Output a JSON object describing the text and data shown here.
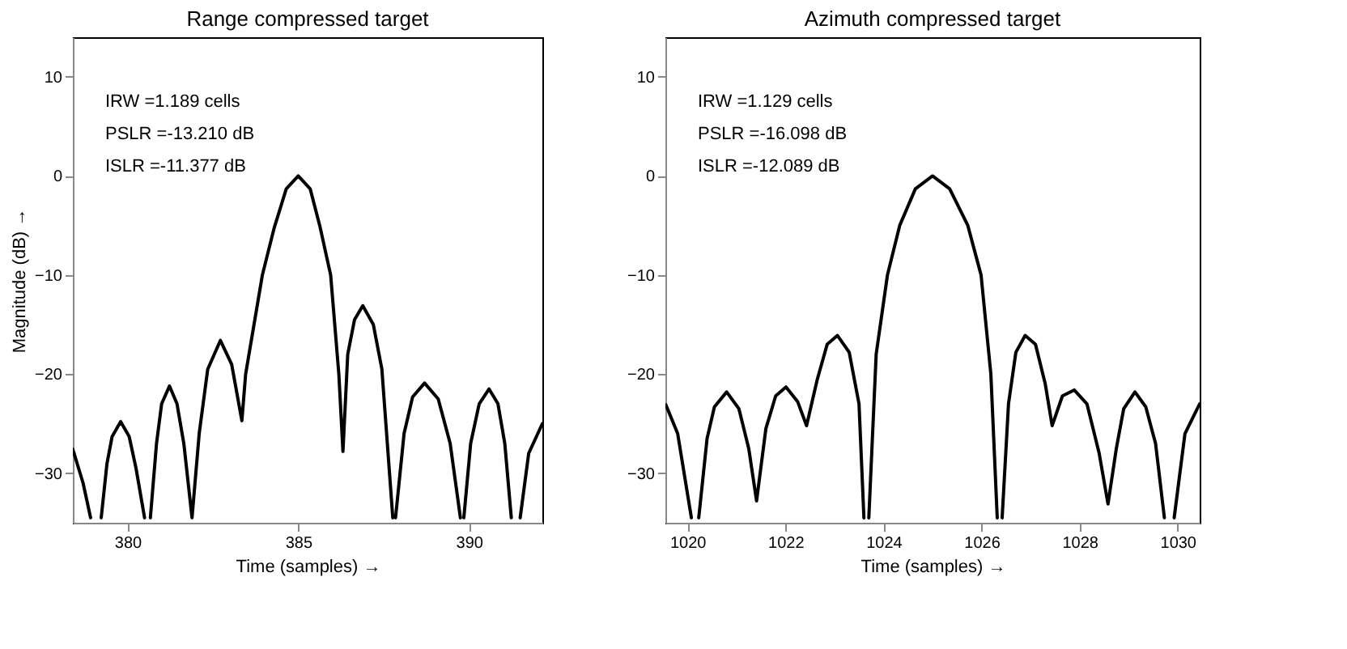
{
  "chart_data": [
    {
      "type": "line",
      "title": "Range compressed target",
      "xlabel": "Time (samples) →",
      "ylabel": "Magnitude (dB) →",
      "xlim": [
        378.4,
        392.15
      ],
      "ylim": [
        -35,
        14
      ],
      "xticks": [
        380,
        385,
        390
      ],
      "yticks": [
        -30,
        -20,
        -10,
        0,
        10
      ],
      "grid": false,
      "annotations": [
        "IRW  =1.189 cells",
        "PSLR  =-13.210 dB",
        "ISLR  =-11.377 dB"
      ],
      "series": [
        {
          "color": "#000000",
          "x": [
            378.4,
            378.7,
            378.92,
            379.07,
            379.23,
            379.4,
            379.55,
            379.8,
            380.05,
            380.25,
            380.5,
            380.58,
            380.67,
            380.85,
            381.0,
            381.23,
            381.45,
            381.65,
            381.89,
            382.1,
            382.35,
            382.72,
            383.05,
            383.35,
            383.46,
            383.95,
            384.3,
            384.65,
            385,
            385.35,
            385.63,
            385.95,
            386.19,
            386.31,
            386.45,
            386.65,
            386.89,
            387.2,
            387.45,
            387.77,
            387.81,
            387.85,
            388.1,
            388.35,
            388.7,
            389.1,
            389.45,
            389.75,
            389.8,
            389.85,
            390.05,
            390.3,
            390.59,
            390.85,
            391.05,
            391.24,
            391.37,
            391.5,
            391.75,
            392.15
          ],
          "values": [
            -27.6,
            -31,
            -34.5,
            null,
            -34.5,
            -29,
            -26.3,
            -24.8,
            -26.3,
            -29.5,
            -34.5,
            null,
            -34.5,
            -27,
            -23,
            -21.2,
            -23,
            -27,
            -34.5,
            -26,
            -19.5,
            -16.6,
            -19,
            -24.7,
            -20,
            -10,
            -5.2,
            -1.3,
            0,
            -1.3,
            -5,
            -10,
            -20,
            -27.8,
            -18,
            -14.5,
            -13.1,
            -15,
            -19.5,
            -34.5,
            null,
            -34.5,
            -26,
            -22.3,
            -20.9,
            -22.5,
            -27,
            -34.5,
            null,
            -34.5,
            -27,
            -23,
            -21.5,
            -23,
            -27,
            -34.5,
            null,
            -34.5,
            -28,
            -25.0
          ]
        }
      ]
    },
    {
      "type": "line",
      "title": "Azimuth compressed target",
      "xlabel": "Time (samples) →",
      "xlim": [
        1019.55,
        1030.45
      ],
      "ylim": [
        -35,
        14
      ],
      "xticks": [
        1020,
        1022,
        1024,
        1026,
        1028,
        1030
      ],
      "yticks": [
        -30,
        -20,
        -10,
        0,
        10
      ],
      "grid": false,
      "annotations": [
        "IRW  =1.129 cells",
        "PSLR  =-16.098 dB",
        "ISLR  =-12.089 dB"
      ],
      "series": [
        {
          "color": "#000000",
          "x": [
            1019.56,
            1019.8,
            1020.08,
            1020.15,
            1020.23,
            1020.4,
            1020.55,
            1020.8,
            1021.05,
            1021.25,
            1021.41,
            1021.6,
            1021.8,
            1022.01,
            1022.25,
            1022.43,
            1022.65,
            1022.85,
            1023.06,
            1023.3,
            1023.5,
            1023.6,
            1023.65,
            1023.7,
            1023.85,
            1024.08,
            1024.33,
            1024.65,
            1025,
            1025.35,
            1025.72,
            1025.99,
            1026.19,
            1026.32,
            1026.37,
            1026.42,
            1026.55,
            1026.7,
            1026.89,
            1027.1,
            1027.3,
            1027.44,
            1027.65,
            1027.89,
            1028.15,
            1028.4,
            1028.58,
            1028.75,
            1028.9,
            1029.13,
            1029.35,
            1029.55,
            1029.73,
            1029.83,
            1029.93,
            1030.15,
            1030.45
          ],
          "values": [
            -23.1,
            -26,
            -34.5,
            null,
            -34.5,
            -26.5,
            -23.3,
            -21.8,
            -23.5,
            -27.5,
            -32.8,
            -25.5,
            -22.2,
            -21.3,
            -22.8,
            -25.2,
            -20.5,
            -17,
            -16.1,
            -17.8,
            -23,
            -34.5,
            null,
            -34.5,
            -18,
            -10,
            -5,
            -1.3,
            0,
            -1.3,
            -5,
            -10,
            -20,
            -34.5,
            null,
            -34.5,
            -23,
            -17.8,
            -16.1,
            -17,
            -21,
            -25.2,
            -22.2,
            -21.6,
            -23,
            -28,
            -33.1,
            -27.5,
            -23.5,
            -21.8,
            -23.3,
            -27,
            -34.5,
            null,
            -34.5,
            -26,
            -23.0
          ]
        }
      ]
    }
  ]
}
